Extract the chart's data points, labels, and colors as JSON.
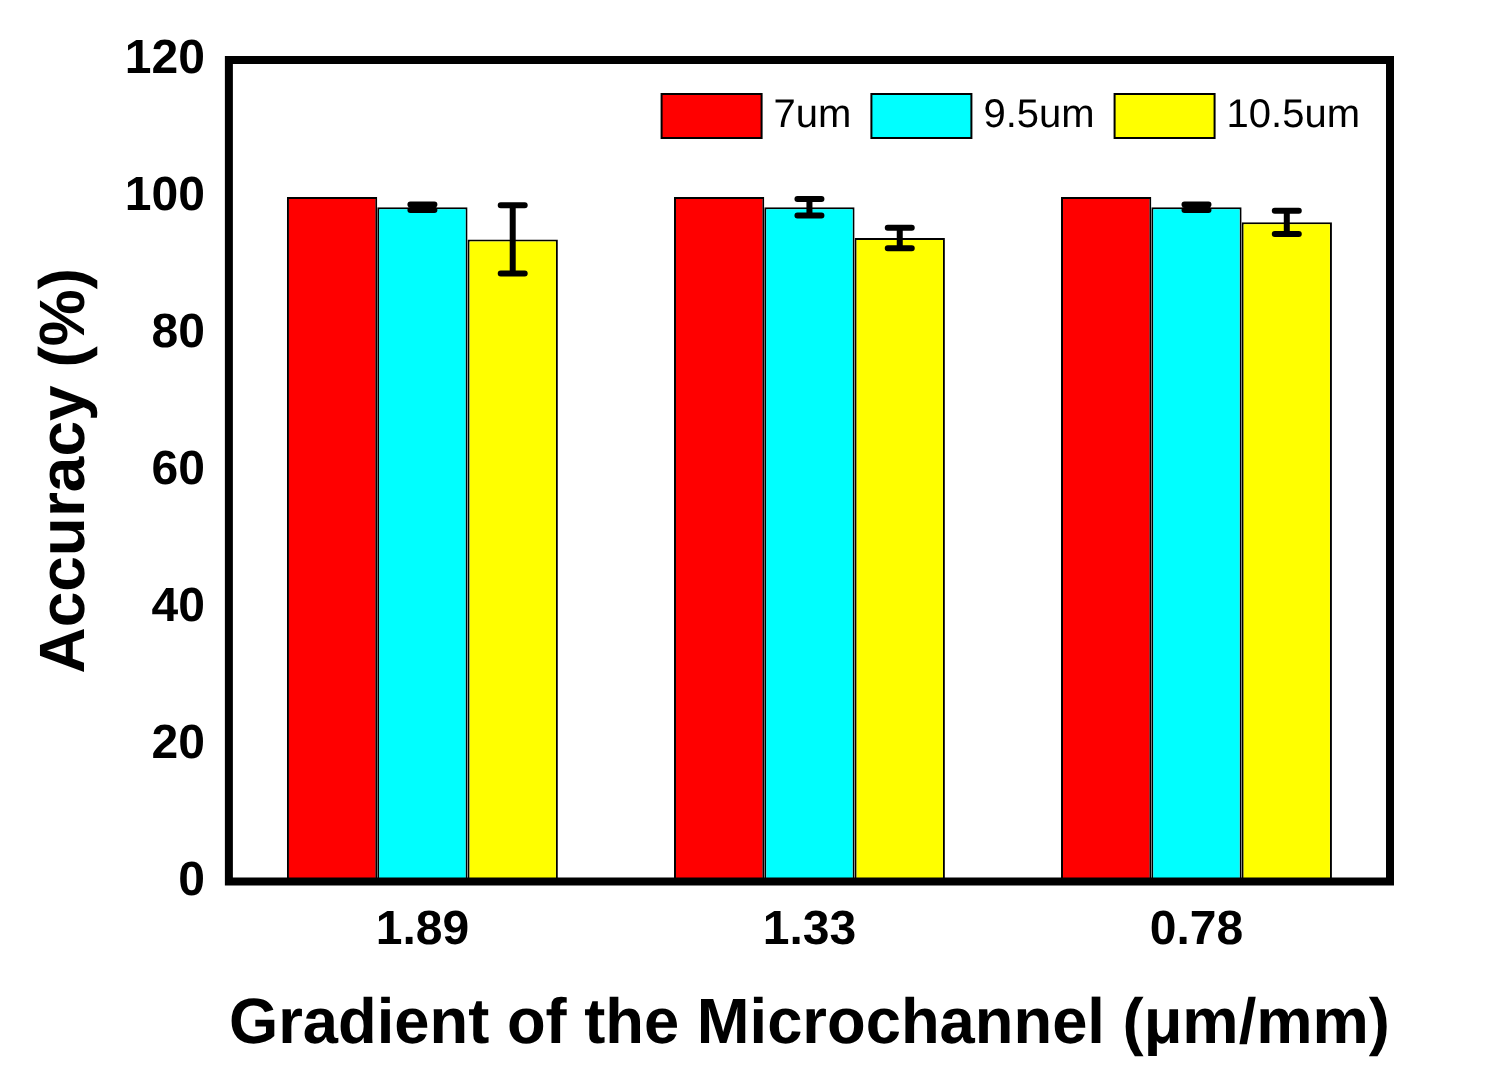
{
  "chart_data": {
    "type": "bar",
    "xlabel": "Gradient of the Microchannel (μm/mm)",
    "ylabel": "Accuracy (%)",
    "categories": [
      "1.89",
      "1.33",
      "0.78"
    ],
    "series": [
      {
        "name": "7um",
        "color": "#ff0000",
        "values": [
          100,
          100,
          100
        ]
      },
      {
        "name": "9.5um",
        "color": "#00ffff",
        "values": [
          98.5,
          98.5,
          98.5
        ],
        "errors": [
          0.4,
          1.2,
          0.4
        ]
      },
      {
        "name": "10.5um",
        "color": "#ffff00",
        "values": [
          93.8,
          94,
          96.3
        ],
        "errors": [
          5,
          1.5,
          1.7
        ]
      }
    ],
    "ylim": [
      0,
      120
    ],
    "yticks": [
      0,
      20,
      40,
      60,
      80,
      100,
      120
    ],
    "grid": false,
    "legend": "top right"
  }
}
